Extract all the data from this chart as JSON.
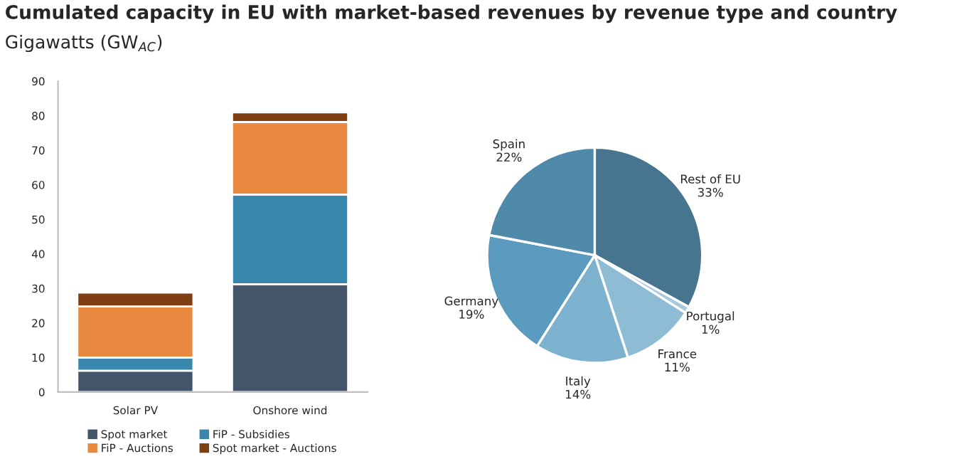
{
  "chart_data": [
    {
      "type": "bar",
      "title": "Cumulated capacity in EU with market-based revenues by revenue type and country",
      "subtitle": "Gigawatts (GW$_{AC}$)",
      "categories": [
        "Solar PV",
        "Onshore wind"
      ],
      "stacked": true,
      "series": [
        {
          "name": "Spot market",
          "color": "#44546a",
          "values": [
            6.2,
            31.2
          ]
        },
        {
          "name": "FiP - Subsidies",
          "color": "#3a87ad",
          "values": [
            3.8,
            26
          ]
        },
        {
          "name": "FiP - Auctions",
          "color": "#e8893f",
          "values": [
            14.8,
            21
          ]
        },
        {
          "name": "Spot market - Auctions",
          "color": "#7f3f13",
          "values": [
            4,
            2.8
          ]
        }
      ],
      "ylim": [
        0,
        90
      ],
      "yticks": [
        0,
        10,
        20,
        30,
        40,
        50,
        60,
        70,
        80,
        90
      ],
      "grid": false,
      "legend": "bottom"
    },
    {
      "type": "pie",
      "categories": [
        "Rest of EU",
        "Portugal",
        "France",
        "Italy",
        "Germany",
        "Spain"
      ],
      "values": [
        33,
        1,
        11,
        14,
        19,
        22
      ],
      "colors": [
        "#47758f",
        "#a9c9dc",
        "#8fbcd5",
        "#7db2cf",
        "#5b9bbf",
        "#4f8aab"
      ],
      "value_labels": [
        "33%",
        "1%",
        "11%",
        "14%",
        "19%",
        "22%"
      ]
    }
  ]
}
